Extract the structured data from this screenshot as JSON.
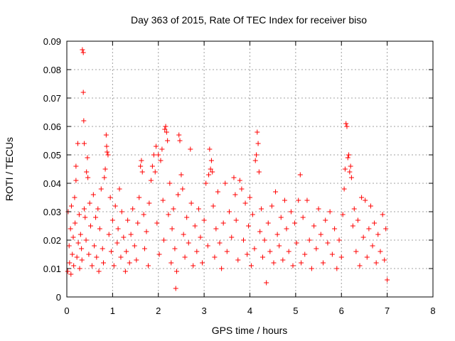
{
  "chart_data": {
    "type": "scatter",
    "title": "Day 363 of 2015, Rate Of TEC Index for receiver biso",
    "xlabel": "GPS time / hours",
    "ylabel": "ROTI / TECUs",
    "xlim": [
      0,
      8
    ],
    "ylim": [
      0,
      0.09
    ],
    "xticks": [
      "0",
      "1",
      "2",
      "3",
      "4",
      "5",
      "6",
      "7",
      "8"
    ],
    "yticks": [
      "0",
      "0.01",
      "0.02",
      "0.03",
      "0.04",
      "0.05",
      "0.06",
      "0.07",
      "0.08",
      "0.09"
    ],
    "grid": true,
    "marker": "plus",
    "color": "#ff0000",
    "series": [
      {
        "points": [
          [
            0.02,
            0.009
          ],
          [
            0.03,
            0.03
          ],
          [
            0.05,
            0.018
          ],
          [
            0.06,
            0.012
          ],
          [
            0.08,
            0.024
          ],
          [
            0.09,
            0.008
          ],
          [
            0.1,
            0.032
          ],
          [
            0.12,
            0.015
          ],
          [
            0.14,
            0.021
          ],
          [
            0.15,
            0.011
          ],
          [
            0.17,
            0.035
          ],
          [
            0.18,
            0.026
          ],
          [
            0.2,
            0.041
          ],
          [
            0.2,
            0.046
          ],
          [
            0.22,
            0.014
          ],
          [
            0.24,
            0.054
          ],
          [
            0.25,
            0.019
          ],
          [
            0.27,
            0.029
          ],
          [
            0.28,
            0.01
          ],
          [
            0.3,
            0.022
          ],
          [
            0.32,
            0.017
          ],
          [
            0.33,
            0.013
          ],
          [
            0.34,
            0.087
          ],
          [
            0.36,
            0.086
          ],
          [
            0.36,
            0.072
          ],
          [
            0.37,
            0.062
          ],
          [
            0.38,
            0.054
          ],
          [
            0.38,
            0.031
          ],
          [
            0.4,
            0.028
          ],
          [
            0.42,
            0.02
          ],
          [
            0.43,
            0.044
          ],
          [
            0.45,
            0.049
          ],
          [
            0.46,
            0.042
          ],
          [
            0.48,
            0.015
          ],
          [
            0.5,
            0.033
          ],
          [
            0.52,
            0.025
          ],
          [
            0.55,
            0.011
          ],
          [
            0.58,
            0.036
          ],
          [
            0.6,
            0.018
          ],
          [
            0.63,
            0.028
          ],
          [
            0.65,
            0.014
          ],
          [
            0.68,
            0.031
          ],
          [
            0.7,
            0.009
          ],
          [
            0.72,
            0.024
          ],
          [
            0.75,
            0.038
          ],
          [
            0.78,
            0.017
          ],
          [
            0.8,
            0.012
          ],
          [
            0.82,
            0.042
          ],
          [
            0.84,
            0.045
          ],
          [
            0.86,
            0.057
          ],
          [
            0.87,
            0.053
          ],
          [
            0.88,
            0.051
          ],
          [
            0.9,
            0.05
          ],
          [
            0.92,
            0.022
          ],
          [
            0.95,
            0.035
          ],
          [
            0.97,
            0.016
          ],
          [
            1.0,
            0.027
          ],
          [
            1.03,
            0.011
          ],
          [
            1.06,
            0.032
          ],
          [
            1.1,
            0.019
          ],
          [
            1.12,
            0.024
          ],
          [
            1.15,
            0.038
          ],
          [
            1.18,
            0.014
          ],
          [
            1.2,
            0.03
          ],
          [
            1.24,
            0.021
          ],
          [
            1.28,
            0.009
          ],
          [
            1.3,
            0.016
          ],
          [
            1.33,
            0.027
          ],
          [
            1.37,
            0.012
          ],
          [
            1.4,
            0.022
          ],
          [
            1.44,
            0.031
          ],
          [
            1.48,
            0.018
          ],
          [
            1.52,
            0.013
          ],
          [
            1.55,
            0.026
          ],
          [
            1.58,
            0.035
          ],
          [
            1.61,
            0.046
          ],
          [
            1.63,
            0.048
          ],
          [
            1.65,
            0.044
          ],
          [
            1.68,
            0.029
          ],
          [
            1.7,
            0.017
          ],
          [
            1.74,
            0.023
          ],
          [
            1.78,
            0.011
          ],
          [
            1.8,
            0.033
          ],
          [
            1.84,
            0.041
          ],
          [
            1.87,
            0.046
          ],
          [
            1.9,
            0.05
          ],
          [
            1.93,
            0.044
          ],
          [
            1.95,
            0.053
          ],
          [
            1.97,
            0.026
          ],
          [
            2.0,
            0.05
          ],
          [
            2.02,
            0.015
          ],
          [
            2.05,
            0.048
          ],
          [
            2.08,
            0.052
          ],
          [
            2.1,
            0.034
          ],
          [
            2.12,
            0.02
          ],
          [
            2.14,
            0.059
          ],
          [
            2.16,
            0.06
          ],
          [
            2.18,
            0.058
          ],
          [
            2.2,
            0.055
          ],
          [
            2.22,
            0.029
          ],
          [
            2.25,
            0.04
          ],
          [
            2.28,
            0.012
          ],
          [
            2.3,
            0.024
          ],
          [
            2.33,
            0.031
          ],
          [
            2.36,
            0.017
          ],
          [
            2.38,
            0.003
          ],
          [
            2.4,
            0.009
          ],
          [
            2.43,
            0.036
          ],
          [
            2.45,
            0.057
          ],
          [
            2.47,
            0.055
          ],
          [
            2.5,
            0.043
          ],
          [
            2.53,
            0.038
          ],
          [
            2.55,
            0.022
          ],
          [
            2.58,
            0.014
          ],
          [
            2.62,
            0.028
          ],
          [
            2.66,
            0.019
          ],
          [
            2.7,
            0.052
          ],
          [
            2.72,
            0.033
          ],
          [
            2.76,
            0.011
          ],
          [
            2.8,
            0.025
          ],
          [
            2.84,
            0.016
          ],
          [
            2.88,
            0.031
          ],
          [
            2.92,
            0.021
          ],
          [
            2.96,
            0.012
          ],
          [
            3.0,
            0.027
          ],
          [
            3.04,
            0.04
          ],
          [
            3.08,
            0.018
          ],
          [
            3.1,
            0.043
          ],
          [
            3.12,
            0.052
          ],
          [
            3.14,
            0.045
          ],
          [
            3.16,
            0.048
          ],
          [
            3.18,
            0.044
          ],
          [
            3.2,
            0.032
          ],
          [
            3.23,
            0.014
          ],
          [
            3.26,
            0.024
          ],
          [
            3.3,
            0.037
          ],
          [
            3.34,
            0.019
          ],
          [
            3.38,
            0.01
          ],
          [
            3.42,
            0.026
          ],
          [
            3.46,
            0.04
          ],
          [
            3.5,
            0.016
          ],
          [
            3.55,
            0.03
          ],
          [
            3.6,
            0.021
          ],
          [
            3.65,
            0.042
          ],
          [
            3.68,
            0.036
          ],
          [
            3.7,
            0.027
          ],
          [
            3.74,
            0.013
          ],
          [
            3.78,
            0.041
          ],
          [
            3.82,
            0.038
          ],
          [
            3.86,
            0.02
          ],
          [
            3.9,
            0.033
          ],
          [
            3.94,
            0.015
          ],
          [
            3.97,
            0.025
          ],
          [
            4.0,
            0.035
          ],
          [
            4.03,
            0.011
          ],
          [
            4.06,
            0.029
          ],
          [
            4.1,
            0.017
          ],
          [
            4.12,
            0.048
          ],
          [
            4.14,
            0.05
          ],
          [
            4.16,
            0.058
          ],
          [
            4.18,
            0.054
          ],
          [
            4.2,
            0.044
          ],
          [
            4.22,
            0.023
          ],
          [
            4.25,
            0.031
          ],
          [
            4.28,
            0.014
          ],
          [
            4.32,
            0.02
          ],
          [
            4.36,
            0.005
          ],
          [
            4.4,
            0.026
          ],
          [
            4.44,
            0.016
          ],
          [
            4.48,
            0.032
          ],
          [
            4.52,
            0.012
          ],
          [
            4.56,
            0.037
          ],
          [
            4.6,
            0.022
          ],
          [
            4.64,
            0.018
          ],
          [
            4.68,
            0.028
          ],
          [
            4.72,
            0.013
          ],
          [
            4.76,
            0.034
          ],
          [
            4.8,
            0.024
          ],
          [
            4.85,
            0.016
          ],
          [
            4.9,
            0.03
          ],
          [
            4.94,
            0.011
          ],
          [
            4.98,
            0.026
          ],
          [
            5.02,
            0.019
          ],
          [
            5.06,
            0.034
          ],
          [
            5.1,
            0.043
          ],
          [
            5.12,
            0.012
          ],
          [
            5.16,
            0.028
          ],
          [
            5.2,
            0.015
          ],
          [
            5.25,
            0.034
          ],
          [
            5.3,
            0.02
          ],
          [
            5.35,
            0.01
          ],
          [
            5.4,
            0.025
          ],
          [
            5.45,
            0.017
          ],
          [
            5.5,
            0.031
          ],
          [
            5.55,
            0.022
          ],
          [
            5.6,
            0.012
          ],
          [
            5.65,
            0.027
          ],
          [
            5.7,
            0.019
          ],
          [
            5.75,
            0.03
          ],
          [
            5.8,
            0.015
          ],
          [
            5.85,
            0.024
          ],
          [
            5.9,
            0.01
          ],
          [
            5.95,
            0.02
          ],
          [
            6.0,
            0.014
          ],
          [
            6.03,
            0.029
          ],
          [
            6.06,
            0.038
          ],
          [
            6.08,
            0.045
          ],
          [
            6.1,
            0.061
          ],
          [
            6.12,
            0.06
          ],
          [
            6.14,
            0.049
          ],
          [
            6.16,
            0.05
          ],
          [
            6.18,
            0.044
          ],
          [
            6.2,
            0.046
          ],
          [
            6.22,
            0.042
          ],
          [
            6.25,
            0.025
          ],
          [
            6.28,
            0.031
          ],
          [
            6.32,
            0.016
          ],
          [
            6.36,
            0.027
          ],
          [
            6.4,
            0.011
          ],
          [
            6.44,
            0.035
          ],
          [
            6.48,
            0.021
          ],
          [
            6.52,
            0.034
          ],
          [
            6.56,
            0.014
          ],
          [
            6.6,
            0.024
          ],
          [
            6.64,
            0.032
          ],
          [
            6.68,
            0.018
          ],
          [
            6.72,
            0.026
          ],
          [
            6.76,
            0.012
          ],
          [
            6.8,
            0.022
          ],
          [
            6.85,
            0.016
          ],
          [
            6.9,
            0.029
          ],
          [
            6.94,
            0.013
          ],
          [
            6.97,
            0.024
          ],
          [
            7.0,
            0.006
          ]
        ]
      }
    ]
  }
}
